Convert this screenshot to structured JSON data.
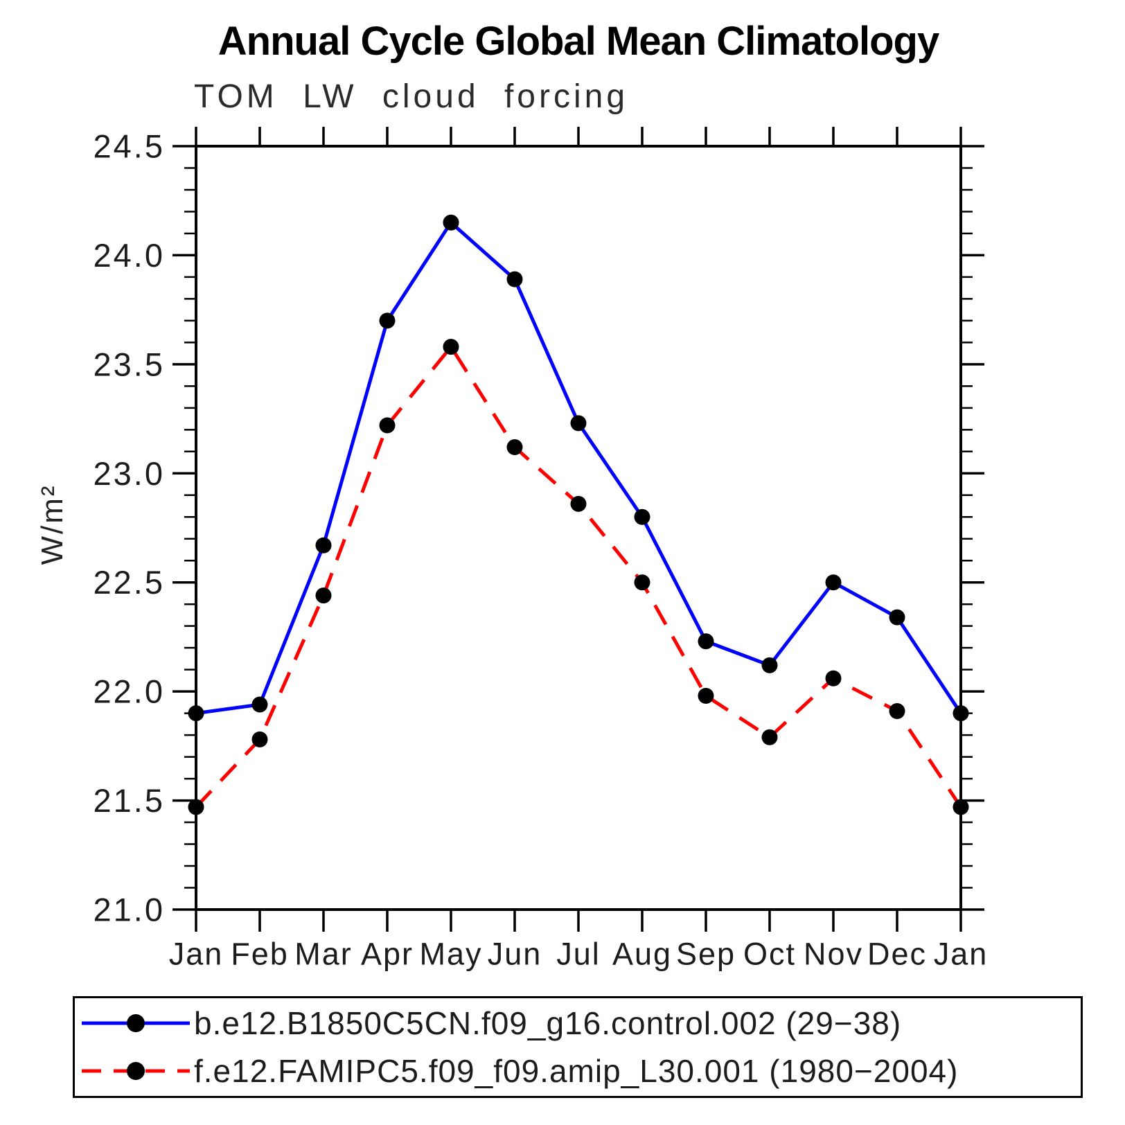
{
  "header": {
    "title": "Annual Cycle Global Mean Climatology",
    "subtitle": "TOM LW cloud forcing"
  },
  "chart_data": {
    "type": "line",
    "title": "Annual Cycle Global Mean Climatology",
    "subtitle": "TOM LW cloud forcing",
    "xlabel": "",
    "ylabel": "W/m²",
    "categories": [
      "Jan",
      "Feb",
      "Mar",
      "Apr",
      "May",
      "Jun",
      "Jul",
      "Aug",
      "Sep",
      "Oct",
      "Nov",
      "Dec",
      "Jan"
    ],
    "ylim": [
      21.0,
      24.5
    ],
    "y_tick_labels": [
      "24.5",
      "24.0",
      "23.5",
      "23.0",
      "22.5",
      "22.0",
      "21.5",
      "21.0"
    ],
    "y_minor_step": 0.1,
    "grid": false,
    "legend_position": "bottom",
    "axis_color": "#000000",
    "marker_color": "#000000",
    "series": [
      {
        "name": "b.e12.B1850C5CN.f09_g16.control.002 (29−38)",
        "color": "#0000ff",
        "style": "solid",
        "marker": "circle",
        "values": [
          21.9,
          21.94,
          22.67,
          23.7,
          24.15,
          23.89,
          23.23,
          22.8,
          22.23,
          22.12,
          22.5,
          22.34,
          21.9
        ]
      },
      {
        "name": "f.e12.FAMIPC5.f09_f09.amip_L30.001 (1980−2004)",
        "color": "#ff0000",
        "style": "dashed",
        "marker": "circle",
        "values": [
          21.47,
          21.78,
          22.44,
          23.22,
          23.58,
          23.12,
          22.86,
          22.5,
          21.98,
          21.79,
          22.06,
          21.91,
          21.47
        ]
      }
    ]
  }
}
